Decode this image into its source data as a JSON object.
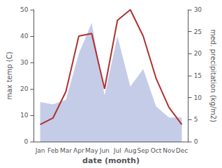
{
  "chart_data": {
    "type": "line",
    "categories": [
      "Jan",
      "Feb",
      "Mar",
      "Apr",
      "May",
      "Jun",
      "Jul",
      "Aug",
      "Sep",
      "Oct",
      "Nov",
      "Dec"
    ],
    "xlabel": "date (month)",
    "ylabel": "max temp (C)",
    "y2label": "med. precipitation (kg/m2)",
    "ylim": [
      0,
      50
    ],
    "yticks": [
      0,
      10,
      20,
      30,
      40,
      50
    ],
    "y2lim": [
      0,
      30
    ],
    "y2ticks": [
      0,
      5,
      10,
      15,
      20,
      25,
      30
    ],
    "grid": false,
    "series": [
      {
        "type": "area",
        "axis": "y2",
        "color": "#c5cce8",
        "values": [
          9.0,
          8.5,
          9.5,
          20.0,
          27.0,
          10.5,
          24.0,
          12.5,
          16.5,
          8.0,
          5.5,
          5.5
        ]
      },
      {
        "type": "line",
        "color": "#b03030",
        "values": [
          6.5,
          9.0,
          19.0,
          40.0,
          41.0,
          20.0,
          46.0,
          50.0,
          40.0,
          24.0,
          13.0,
          6.5
        ]
      }
    ]
  }
}
